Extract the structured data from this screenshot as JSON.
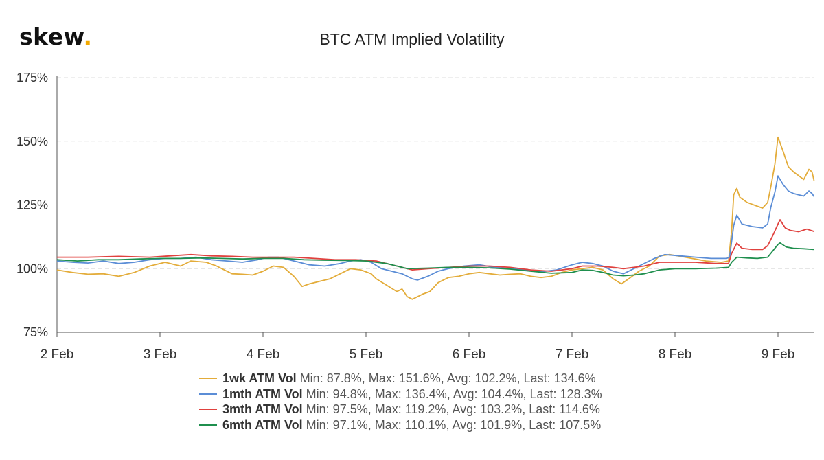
{
  "brand": {
    "name": "skew",
    "dot": ".",
    "dot_color": "#f2a900"
  },
  "chart_data": {
    "type": "line",
    "title": "BTC ATM Implied Volatility",
    "xlabel": "",
    "ylabel": "",
    "x_ticks": [
      "2 Feb",
      "3 Feb",
      "4 Feb",
      "5 Feb",
      "6 Feb",
      "7 Feb",
      "8 Feb",
      "9 Feb"
    ],
    "x_range_days": [
      2.0,
      9.35
    ],
    "y_ticks": [
      "75%",
      "100%",
      "125%",
      "150%",
      "175%"
    ],
    "ylim": [
      75,
      175
    ],
    "grid": "horizontal dashed",
    "legend_position": "bottom",
    "series": [
      {
        "name": "1wk ATM Vol",
        "stats": "Min: 87.8%, Max: 151.6%, Avg: 102.2%, Last: 134.6%",
        "color": "#e3ac3a",
        "points": [
          [
            2.0,
            99.5
          ],
          [
            2.15,
            98.5
          ],
          [
            2.3,
            97.8
          ],
          [
            2.45,
            98
          ],
          [
            2.6,
            97
          ],
          [
            2.75,
            98.5
          ],
          [
            2.9,
            101
          ],
          [
            3.05,
            102.5
          ],
          [
            3.2,
            101
          ],
          [
            3.3,
            103
          ],
          [
            3.45,
            102.5
          ],
          [
            3.55,
            101
          ],
          [
            3.6,
            100
          ],
          [
            3.7,
            98
          ],
          [
            3.8,
            97.8
          ],
          [
            3.9,
            97.5
          ],
          [
            4.0,
            99
          ],
          [
            4.1,
            101
          ],
          [
            4.2,
            100.5
          ],
          [
            4.3,
            97
          ],
          [
            4.38,
            93
          ],
          [
            4.45,
            94
          ],
          [
            4.55,
            95
          ],
          [
            4.65,
            96
          ],
          [
            4.75,
            98
          ],
          [
            4.85,
            100
          ],
          [
            4.95,
            99.5
          ],
          [
            5.05,
            98
          ],
          [
            5.1,
            96
          ],
          [
            5.2,
            93.5
          ],
          [
            5.3,
            91
          ],
          [
            5.35,
            92
          ],
          [
            5.4,
            89
          ],
          [
            5.45,
            88
          ],
          [
            5.55,
            90
          ],
          [
            5.62,
            91
          ],
          [
            5.7,
            94.5
          ],
          [
            5.8,
            96.5
          ],
          [
            5.9,
            97
          ],
          [
            6.0,
            98
          ],
          [
            6.1,
            98.5
          ],
          [
            6.2,
            98
          ],
          [
            6.3,
            97.5
          ],
          [
            6.4,
            97.8
          ],
          [
            6.5,
            98
          ],
          [
            6.6,
            97
          ],
          [
            6.7,
            96.5
          ],
          [
            6.8,
            97
          ],
          [
            6.9,
            98.5
          ],
          [
            7.0,
            99.5
          ],
          [
            7.1,
            100
          ],
          [
            7.2,
            100.5
          ],
          [
            7.3,
            99.5
          ],
          [
            7.4,
            96
          ],
          [
            7.48,
            94
          ],
          [
            7.55,
            96
          ],
          [
            7.65,
            99
          ],
          [
            7.75,
            101
          ],
          [
            7.85,
            105
          ],
          [
            7.95,
            105.5
          ],
          [
            8.1,
            104.5
          ],
          [
            8.3,
            103
          ],
          [
            8.45,
            102.5
          ],
          [
            8.52,
            103
          ],
          [
            8.55,
            115
          ],
          [
            8.57,
            129
          ],
          [
            8.6,
            131.5
          ],
          [
            8.63,
            128
          ],
          [
            8.7,
            126
          ],
          [
            8.8,
            124.5
          ],
          [
            8.85,
            123.8
          ],
          [
            8.9,
            126
          ],
          [
            8.93,
            132
          ],
          [
            8.97,
            141
          ],
          [
            9.0,
            151.6
          ],
          [
            9.05,
            146
          ],
          [
            9.1,
            140
          ],
          [
            9.15,
            138
          ],
          [
            9.2,
            136.5
          ],
          [
            9.25,
            135
          ],
          [
            9.3,
            139
          ],
          [
            9.33,
            138
          ],
          [
            9.35,
            134.6
          ]
        ]
      },
      {
        "name": "1mth ATM Vol",
        "stats": "Min: 94.8%, Max: 136.4%, Avg: 104.4%, Last: 128.3%",
        "color": "#5b8dd6",
        "points": [
          [
            2.0,
            103
          ],
          [
            2.15,
            102.5
          ],
          [
            2.3,
            102.2
          ],
          [
            2.45,
            103
          ],
          [
            2.6,
            102
          ],
          [
            2.75,
            102.5
          ],
          [
            2.9,
            103.5
          ],
          [
            3.05,
            104
          ],
          [
            3.2,
            104
          ],
          [
            3.35,
            104.5
          ],
          [
            3.5,
            103.5
          ],
          [
            3.65,
            103
          ],
          [
            3.8,
            102.5
          ],
          [
            3.95,
            103.5
          ],
          [
            4.05,
            104.5
          ],
          [
            4.15,
            104.5
          ],
          [
            4.3,
            103
          ],
          [
            4.45,
            101.5
          ],
          [
            4.6,
            101
          ],
          [
            4.75,
            102
          ],
          [
            4.85,
            103
          ],
          [
            4.95,
            103.5
          ],
          [
            5.05,
            102.5
          ],
          [
            5.15,
            100
          ],
          [
            5.25,
            99
          ],
          [
            5.35,
            98
          ],
          [
            5.45,
            96
          ],
          [
            5.5,
            95.5
          ],
          [
            5.6,
            97
          ],
          [
            5.7,
            99
          ],
          [
            5.8,
            100
          ],
          [
            5.95,
            101
          ],
          [
            6.1,
            101.5
          ],
          [
            6.25,
            100.5
          ],
          [
            6.4,
            100
          ],
          [
            6.55,
            99.5
          ],
          [
            6.7,
            98.8
          ],
          [
            6.85,
            99.5
          ],
          [
            7.0,
            101.5
          ],
          [
            7.1,
            102.5
          ],
          [
            7.2,
            102
          ],
          [
            7.3,
            101
          ],
          [
            7.4,
            99
          ],
          [
            7.5,
            98
          ],
          [
            7.6,
            100
          ],
          [
            7.7,
            102
          ],
          [
            7.8,
            104
          ],
          [
            7.9,
            105.5
          ],
          [
            8.05,
            105
          ],
          [
            8.2,
            104.5
          ],
          [
            8.35,
            104
          ],
          [
            8.5,
            104
          ],
          [
            8.53,
            104.5
          ],
          [
            8.57,
            117
          ],
          [
            8.6,
            121
          ],
          [
            8.65,
            117.5
          ],
          [
            8.75,
            116.5
          ],
          [
            8.85,
            116
          ],
          [
            8.9,
            117.5
          ],
          [
            8.93,
            124
          ],
          [
            8.97,
            130
          ],
          [
            9.0,
            136.4
          ],
          [
            9.05,
            133
          ],
          [
            9.1,
            130.5
          ],
          [
            9.15,
            129.5
          ],
          [
            9.2,
            129
          ],
          [
            9.25,
            128.5
          ],
          [
            9.3,
            130.5
          ],
          [
            9.33,
            129.5
          ],
          [
            9.35,
            128.3
          ]
        ]
      },
      {
        "name": "3mth ATM Vol",
        "stats": "Min: 97.5%, Max: 119.2%, Avg: 103.2%, Last: 114.6%",
        "color": "#e0413e",
        "points": [
          [
            2.0,
            104.5
          ],
          [
            2.3,
            104.5
          ],
          [
            2.6,
            104.8
          ],
          [
            2.9,
            104.5
          ],
          [
            3.1,
            105
          ],
          [
            3.3,
            105.5
          ],
          [
            3.5,
            105
          ],
          [
            3.7,
            104.8
          ],
          [
            3.9,
            104.5
          ],
          [
            4.1,
            104.5
          ],
          [
            4.3,
            104.5
          ],
          [
            4.5,
            104
          ],
          [
            4.7,
            103.5
          ],
          [
            4.9,
            103.5
          ],
          [
            5.1,
            103
          ],
          [
            5.3,
            101
          ],
          [
            5.45,
            99.5
          ],
          [
            5.6,
            100
          ],
          [
            5.8,
            100.5
          ],
          [
            6.0,
            101
          ],
          [
            6.2,
            101
          ],
          [
            6.4,
            100.5
          ],
          [
            6.6,
            99.5
          ],
          [
            6.8,
            99
          ],
          [
            7.0,
            100
          ],
          [
            7.1,
            101
          ],
          [
            7.25,
            101
          ],
          [
            7.4,
            100.5
          ],
          [
            7.5,
            100
          ],
          [
            7.7,
            101
          ],
          [
            7.85,
            102.5
          ],
          [
            8.0,
            102.5
          ],
          [
            8.2,
            102.5
          ],
          [
            8.4,
            102
          ],
          [
            8.52,
            102
          ],
          [
            8.55,
            106
          ],
          [
            8.6,
            110
          ],
          [
            8.65,
            108
          ],
          [
            8.75,
            107.5
          ],
          [
            8.85,
            107.5
          ],
          [
            8.9,
            109
          ],
          [
            8.95,
            113
          ],
          [
            9.0,
            117.5
          ],
          [
            9.02,
            119.2
          ],
          [
            9.07,
            116
          ],
          [
            9.12,
            115
          ],
          [
            9.2,
            114.5
          ],
          [
            9.28,
            115.5
          ],
          [
            9.35,
            114.6
          ]
        ]
      },
      {
        "name": "6mth ATM Vol",
        "stats": "Min: 97.1%, Max: 110.1%, Avg: 101.9%, Last: 107.5%",
        "color": "#1f8f4e",
        "points": [
          [
            2.0,
            103.5
          ],
          [
            2.2,
            103
          ],
          [
            2.4,
            103.5
          ],
          [
            2.6,
            103.5
          ],
          [
            2.8,
            103.8
          ],
          [
            3.0,
            104
          ],
          [
            3.2,
            104
          ],
          [
            3.4,
            104.2
          ],
          [
            3.6,
            104
          ],
          [
            3.8,
            103.8
          ],
          [
            4.0,
            104
          ],
          [
            4.2,
            104
          ],
          [
            4.4,
            103.5
          ],
          [
            4.6,
            103.3
          ],
          [
            4.8,
            103.2
          ],
          [
            5.0,
            103
          ],
          [
            5.2,
            102
          ],
          [
            5.4,
            100
          ],
          [
            5.6,
            100.2
          ],
          [
            5.8,
            100.5
          ],
          [
            6.0,
            100.5
          ],
          [
            6.2,
            100.3
          ],
          [
            6.4,
            99.8
          ],
          [
            6.6,
            99
          ],
          [
            6.8,
            98.2
          ],
          [
            7.0,
            98.5
          ],
          [
            7.1,
            99.5
          ],
          [
            7.2,
            99.3
          ],
          [
            7.3,
            98.5
          ],
          [
            7.4,
            97.5
          ],
          [
            7.5,
            97.2
          ],
          [
            7.6,
            97.5
          ],
          [
            7.7,
            98
          ],
          [
            7.85,
            99.5
          ],
          [
            8.0,
            100
          ],
          [
            8.2,
            100
          ],
          [
            8.4,
            100.2
          ],
          [
            8.52,
            100.5
          ],
          [
            8.55,
            102.5
          ],
          [
            8.6,
            104.5
          ],
          [
            8.7,
            104.2
          ],
          [
            8.8,
            104
          ],
          [
            8.9,
            104.5
          ],
          [
            8.95,
            107
          ],
          [
            9.0,
            109.5
          ],
          [
            9.02,
            110.1
          ],
          [
            9.08,
            108.5
          ],
          [
            9.15,
            108
          ],
          [
            9.25,
            107.8
          ],
          [
            9.35,
            107.5
          ]
        ]
      }
    ]
  }
}
